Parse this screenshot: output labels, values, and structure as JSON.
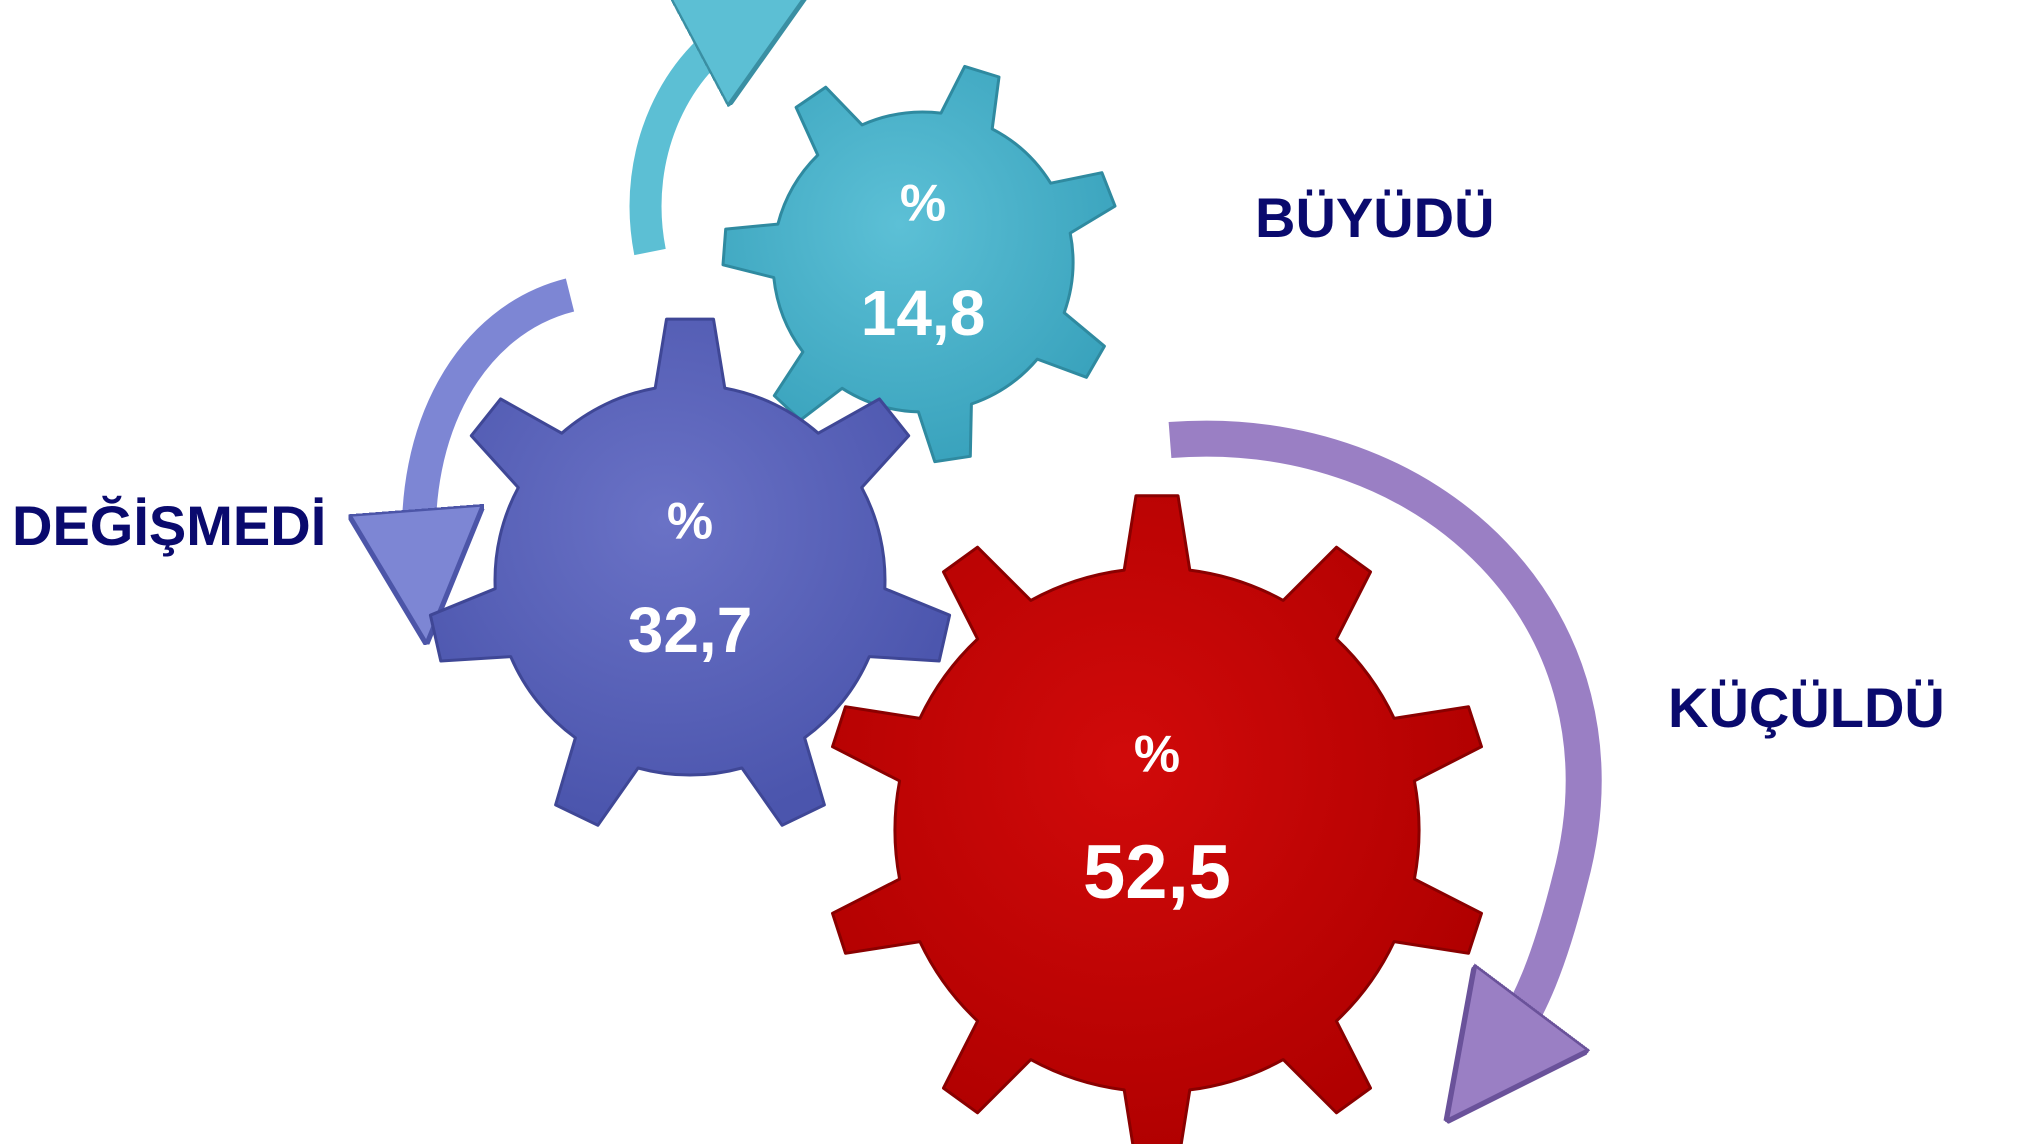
{
  "items": [
    {
      "label": "BÜYÜDÜ",
      "percent": "%",
      "value": "14,8"
    },
    {
      "label": "DEĞİŞMEDİ",
      "percent": "%",
      "value": "32,7"
    },
    {
      "label": "KÜÇÜLDÜ",
      "percent": "%",
      "value": "52,5"
    }
  ]
}
